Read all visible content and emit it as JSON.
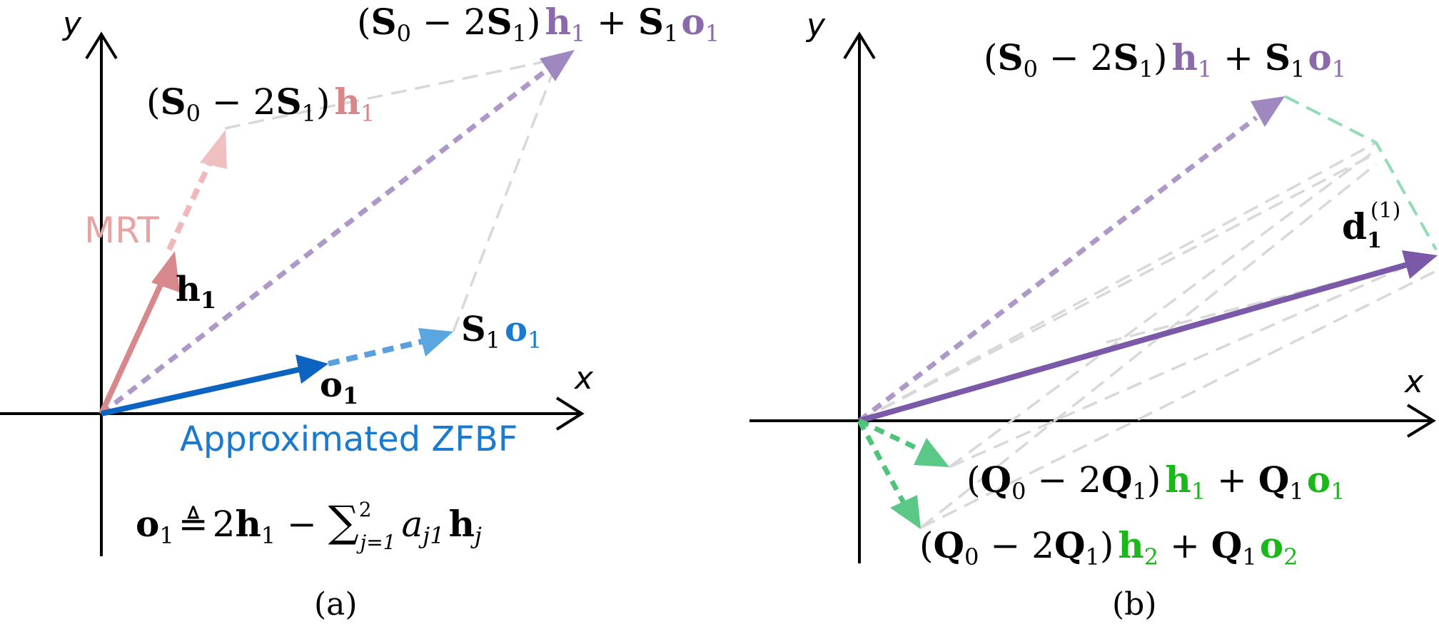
{
  "colors": {
    "axis": "#000000",
    "mrt": "#d8878a",
    "sum": "#8a6aaa",
    "zf": "#1a7ad0",
    "zf_dark": "#0d63c0",
    "guide": "#d8d8d8",
    "green": "#4cc47a",
    "green_text": "#1ab81a",
    "purple": "#7a5aa8"
  },
  "panel_a": {
    "caption": "(a)",
    "axis_x": "x",
    "axis_y": "y",
    "label_mrt": "MRT",
    "label_zfbf": "Approximated ZFBF",
    "vec_h1": {
      "b": "h",
      "sub": "1"
    },
    "vec_o1": {
      "b": "o",
      "sub": "1"
    },
    "expr_s1o1": {
      "m": "S",
      "m_sub": "1",
      "v": "o",
      "v_sub": "1"
    },
    "expr_pre_h1": {
      "open": "(",
      "S": "S",
      "sub0": "0",
      "minus": " − 2",
      "sub1": "1",
      "close": ")",
      "h": "h",
      "hsub": "1"
    },
    "expr_top": {
      "open": "(",
      "S": "S",
      "sub0": "0",
      "minus": " − 2",
      "sub1": "1",
      "close": ")",
      "h": "h",
      "hsub": "1",
      "plus": " + ",
      "S2": "S",
      "s2sub": "1",
      "o": "o",
      "osub": "1"
    },
    "formula": {
      "lhs": "o",
      "lhs_sub": "1",
      "def": "≜",
      "rhs1": "2",
      "h1": "h",
      "h1_sub": "1",
      "minus": " − ",
      "sum": "∑",
      "sum_sup": "2",
      "sum_sub": "j=1",
      "a": "a",
      "a_sub": "j1",
      "hj": "h",
      "hj_sub": "j"
    }
  },
  "panel_b": {
    "caption": "(b)",
    "axis_x": "x",
    "axis_y": "y",
    "expr_top": {
      "open": "(",
      "S": "S",
      "sub0": "0",
      "minus": " − 2",
      "sub1": "1",
      "close": ")",
      "h": "h",
      "hsub": "1",
      "plus": " + ",
      "S2": "S",
      "s2sub": "1",
      "o": "o",
      "osub": "1"
    },
    "vec_d": {
      "b": "d",
      "sub": "1",
      "sup": "(1)"
    },
    "expr_q1": {
      "open": "(",
      "Q": "Q",
      "sub0": "0",
      "minus": " − 2",
      "sub1": "1",
      "close": ")",
      "h": "h",
      "hsub": "1",
      "plus": " + ",
      "Q2": "Q",
      "q2sub": "1",
      "o": "o",
      "osub": "1"
    },
    "expr_q2": {
      "open": "(",
      "Q": "Q",
      "sub0": "0",
      "minus": " − 2",
      "sub1": "1",
      "close": ")",
      "h": "h",
      "hsub": "2",
      "plus": " + ",
      "Q2": "Q",
      "q2sub": "1",
      "o": "o",
      "osub": "2"
    }
  }
}
